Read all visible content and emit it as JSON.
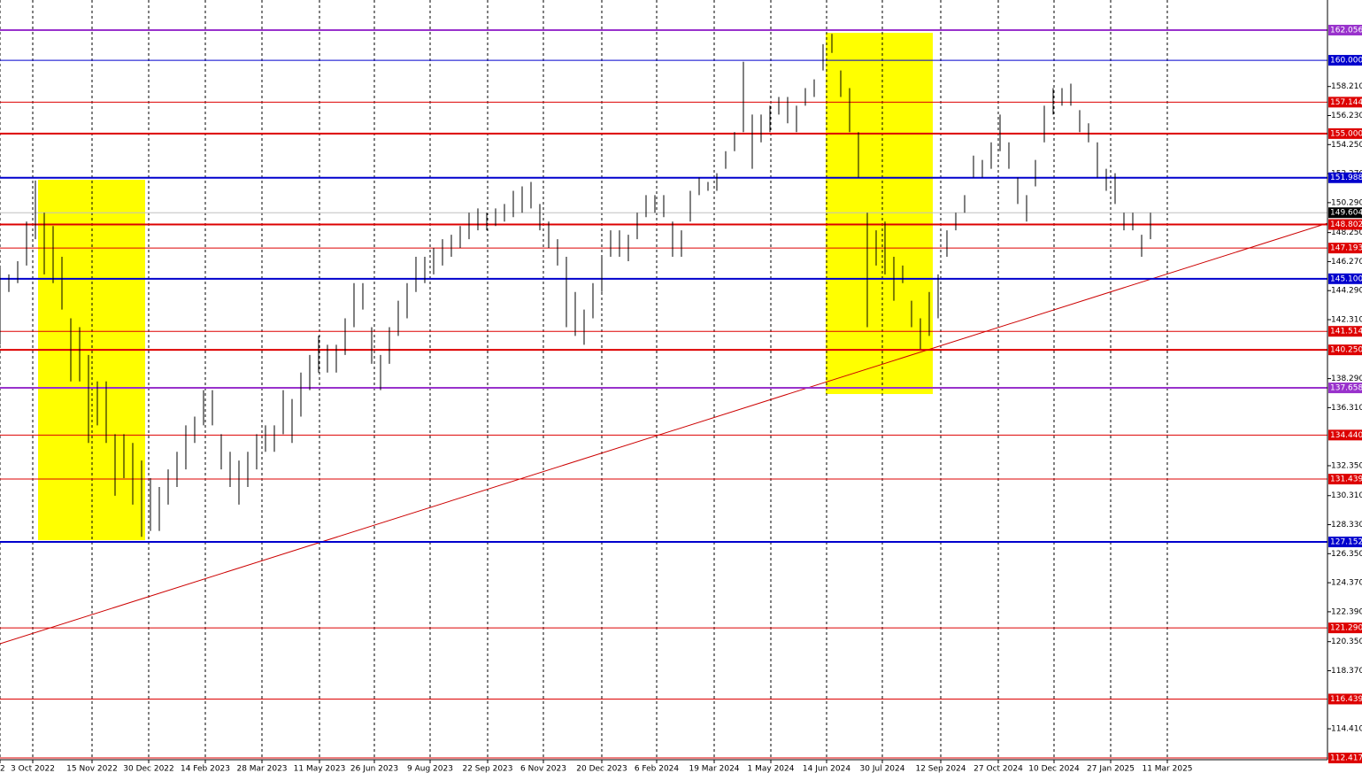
{
  "chart_data": {
    "type": "ohlc",
    "xlim": [
      0,
      750
    ],
    "ylim": [
      112.3,
      164.11
    ],
    "xticks": [
      {
        "value": 0,
        "label": "2"
      },
      {
        "value": 18.5,
        "label": "3 Oct 2022"
      },
      {
        "value": 52,
        "label": "15 Nov 2022"
      },
      {
        "value": 84,
        "label": "30 Dec 2022"
      },
      {
        "value": 116,
        "label": "14 Feb 2023"
      },
      {
        "value": 148,
        "label": "28 Mar 2023"
      },
      {
        "value": 180.5,
        "label": "11 May 2023"
      },
      {
        "value": 211.5,
        "label": "26 Jun 2023"
      },
      {
        "value": 243,
        "label": "9 Aug 2023"
      },
      {
        "value": 275.5,
        "label": "22 Sep 2023"
      },
      {
        "value": 307,
        "label": "6 Nov 2023"
      },
      {
        "value": 340,
        "label": "20 Dec 2023"
      },
      {
        "value": 371,
        "label": "6 Feb 2024"
      },
      {
        "value": 403.5,
        "label": "19 Mar 2024"
      },
      {
        "value": 435.5,
        "label": "1 May 2024"
      },
      {
        "value": 467,
        "label": "14 Jun 2024"
      },
      {
        "value": 498.5,
        "label": "30 Jul 2024"
      },
      {
        "value": 531.5,
        "label": "12 Sep 2024"
      },
      {
        "value": 564,
        "label": "27 Oct 2024"
      },
      {
        "value": 595.5,
        "label": "10 Dec 2024"
      },
      {
        "value": 627.5,
        "label": "27 Jan 2025"
      },
      {
        "value": 659.5,
        "label": "11 Mar 2025"
      }
    ],
    "yticks": [
      {
        "value": 158.21,
        "label": "158.210"
      },
      {
        "value": 156.23,
        "label": "156.230"
      },
      {
        "value": 154.25,
        "label": "154.250"
      },
      {
        "value": 152.27,
        "label": "152.270"
      },
      {
        "value": 150.29,
        "label": "150.290"
      },
      {
        "value": 148.25,
        "label": "148.250"
      },
      {
        "value": 146.27,
        "label": "146.270"
      },
      {
        "value": 144.29,
        "label": "144.290"
      },
      {
        "value": 142.31,
        "label": "142.310"
      },
      {
        "value": 138.29,
        "label": "138.290"
      },
      {
        "value": 136.31,
        "label": "136.310"
      },
      {
        "value": 132.35,
        "label": "132.350"
      },
      {
        "value": 130.31,
        "label": "130.310"
      },
      {
        "value": 128.33,
        "label": "128.330"
      },
      {
        "value": 126.35,
        "label": "126.350"
      },
      {
        "value": 124.37,
        "label": "124.370"
      },
      {
        "value": 122.39,
        "label": "122.390"
      },
      {
        "value": 120.35,
        "label": "120.350"
      },
      {
        "value": 118.37,
        "label": "118.370"
      },
      {
        "value": 114.41,
        "label": "114.410"
      }
    ],
    "grid": true,
    "bar_color": "#000000",
    "series": [
      {
        "x": [
          0,
          5,
          10,
          15,
          20,
          25,
          30,
          35,
          40,
          45,
          50,
          55,
          60,
          65,
          70,
          75,
          80,
          85,
          90,
          95,
          100,
          105,
          110,
          115,
          120,
          125,
          130,
          135,
          140,
          145,
          150,
          155,
          160,
          165,
          170,
          175,
          180,
          185,
          190,
          195,
          200,
          205,
          210,
          215,
          220,
          225,
          230,
          235,
          240,
          245,
          250,
          255,
          260,
          265,
          270,
          275,
          280,
          285,
          290,
          295,
          300,
          305,
          310,
          315,
          320,
          325,
          330,
          335,
          340,
          345,
          350,
          355,
          360,
          365,
          370,
          375,
          380,
          385,
          390,
          395,
          400,
          405,
          410,
          415,
          420,
          425,
          430,
          435,
          440,
          445,
          450,
          455,
          460,
          465,
          470,
          475,
          480,
          485,
          490,
          495,
          500,
          505,
          510,
          515,
          520,
          525,
          530,
          535,
          540,
          545,
          550,
          555,
          560,
          565,
          570,
          575,
          580,
          585,
          590,
          595,
          600,
          605,
          610,
          615,
          620,
          625,
          630,
          635,
          640,
          645,
          650
        ],
        "high": [
          146.0,
          145.4,
          146.3,
          149.0,
          151.8,
          149.6,
          148.7,
          146.6,
          142.4,
          141.8,
          139.9,
          138.1,
          138.1,
          134.5,
          134.5,
          133.9,
          132.7,
          131.5,
          130.9,
          132.1,
          133.3,
          135.1,
          135.7,
          137.5,
          137.5,
          134.5,
          133.3,
          132.7,
          133.3,
          134.5,
          135.1,
          135.1,
          137.5,
          136.9,
          138.7,
          139.9,
          141.2,
          140.6,
          140.6,
          142.4,
          144.8,
          144.8,
          141.8,
          139.9,
          141.8,
          143.6,
          144.8,
          146.6,
          146.6,
          147.2,
          147.8,
          148.1,
          148.7,
          149.6,
          149.9,
          149.6,
          149.9,
          150.2,
          151.1,
          151.4,
          151.7,
          150.2,
          149.0,
          147.8,
          146.6,
          144.2,
          143.0,
          144.8,
          146.6,
          148.4,
          148.4,
          148.1,
          149.6,
          150.8,
          150.8,
          150.8,
          149.0,
          148.4,
          151.1,
          152.0,
          151.7,
          152.3,
          153.8,
          155.1,
          159.9,
          156.3,
          156.3,
          156.9,
          157.5,
          157.5,
          156.9,
          158.1,
          158.7,
          161.1,
          161.8,
          159.3,
          158.1,
          155.1,
          149.6,
          148.4,
          149.0,
          146.6,
          146.0,
          143.6,
          142.4,
          144.2,
          145.4,
          148.4,
          149.6,
          150.8,
          153.5,
          153.2,
          154.4,
          156.3,
          154.4,
          152.0,
          150.8,
          153.2,
          156.9,
          158.1,
          158.1,
          158.4,
          156.6,
          155.7,
          154.4,
          152.6,
          152.3,
          149.6,
          149.6,
          148.1,
          149.6
        ],
        "low": [
          140.6,
          144.2,
          144.8,
          146.0,
          147.8,
          145.4,
          144.8,
          143.0,
          138.1,
          138.1,
          133.9,
          135.1,
          133.9,
          130.3,
          131.5,
          129.7,
          127.5,
          127.9,
          127.9,
          129.7,
          130.9,
          132.1,
          133.9,
          135.1,
          135.1,
          132.1,
          130.9,
          129.7,
          130.9,
          132.1,
          133.3,
          133.3,
          134.5,
          133.9,
          135.7,
          137.5,
          138.7,
          138.7,
          138.7,
          139.9,
          141.8,
          143.0,
          139.3,
          137.5,
          139.3,
          141.2,
          142.4,
          144.2,
          144.8,
          145.4,
          146.0,
          146.6,
          147.2,
          147.8,
          148.4,
          148.4,
          148.7,
          149.0,
          149.3,
          149.6,
          149.9,
          148.4,
          147.2,
          146.0,
          141.8,
          141.2,
          140.6,
          142.4,
          144.2,
          146.6,
          146.6,
          146.3,
          147.8,
          149.3,
          149.6,
          149.3,
          146.6,
          146.6,
          149.0,
          150.8,
          151.1,
          151.1,
          152.6,
          153.8,
          155.1,
          152.6,
          154.4,
          155.1,
          156.3,
          155.7,
          155.1,
          156.9,
          157.5,
          159.3,
          160.5,
          157.5,
          155.1,
          152.0,
          141.8,
          146.0,
          145.4,
          143.6,
          144.8,
          141.8,
          140.3,
          141.2,
          142.4,
          146.6,
          148.4,
          149.6,
          152.0,
          152.0,
          152.6,
          153.8,
          152.6,
          150.2,
          149.0,
          151.4,
          154.4,
          156.3,
          156.9,
          156.9,
          155.1,
          154.4,
          152.0,
          151.1,
          150.2,
          148.4,
          148.4,
          146.6,
          147.8
        ]
      }
    ],
    "levels": [
      {
        "value": 162.056,
        "color": "#9932cc",
        "thick": true
      },
      {
        "value": 160,
        "label": "160.000",
        "color": "#0000cd",
        "thick": false
      },
      {
        "value": 157.144,
        "color": "#dd0000",
        "thick": false
      },
      {
        "value": 155,
        "label": "155.000",
        "color": "#dd0000",
        "thick": true
      },
      {
        "value": 151.988,
        "color": "#0000cd",
        "thick": true
      },
      {
        "value": 149.604,
        "color": "#000000",
        "line_color": "#c0c0c0",
        "thick": false
      },
      {
        "value": 148.802,
        "color": "#dd0000",
        "thick": true
      },
      {
        "value": 147.193,
        "color": "#dd0000",
        "thick": false
      },
      {
        "value": 145.1,
        "label": "145.100",
        "color": "#0000cd",
        "thick": true
      },
      {
        "value": 141.514,
        "color": "#dd0000",
        "thick": false
      },
      {
        "value": 140.25,
        "label": "140.250",
        "color": "#dd0000",
        "thick": true
      },
      {
        "value": 137.658,
        "color": "#9932cc",
        "thick": true
      },
      {
        "value": 134.44,
        "label": "134.440",
        "color": "#dd0000",
        "thick": false
      },
      {
        "value": 131.439,
        "color": "#dd0000",
        "thick": false
      },
      {
        "value": 127.152,
        "color": "#0000cd",
        "thick": true
      },
      {
        "value": 121.29,
        "label": "121.290",
        "color": "#dd0000",
        "thick": false
      },
      {
        "value": 116.439,
        "color": "#dd0000",
        "thick": false
      },
      {
        "value": 112.417,
        "color": "#dd0000",
        "thick": false
      }
    ],
    "trendline": {
      "x": [
        0,
        750
      ],
      "y": [
        120.21,
        148.89
      ],
      "color": "#cc0000"
    },
    "zones": [
      {
        "x": [
          21.5,
          82
        ],
        "y": [
          151.85,
          127.27
        ],
        "color": "#ffff00"
      },
      {
        "x": [
          466.5,
          527
        ],
        "y": [
          161.87,
          137.24
        ],
        "color": "#ffff00"
      }
    ]
  }
}
